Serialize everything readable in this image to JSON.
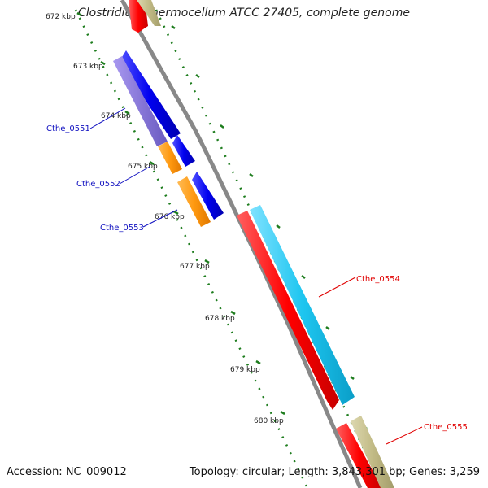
{
  "title": "Clostridium thermocellum ATCC 27405, complete genome",
  "footer": {
    "accession": "Accession: NC_009012",
    "topology": "Topology: circular; Length: 3,843,301 bp; Genes: 3,259"
  },
  "colors": {
    "backbone": "#888888",
    "ticks": "#1e7d1e",
    "label_blue": "#1010c0",
    "label_red": "#e00000",
    "cds_forward": "#ff0000",
    "cds_reverse": "#0000ee",
    "gene_other_reverse": "#8878d8",
    "gene_misc": "#ff9910",
    "gene_cyan": "#1ec6f0",
    "gene_khaki": "#c2bb86"
  },
  "kbp_labels": [
    "672 kbp",
    "673 kbp",
    "674 kbp",
    "675 kbp",
    "676 kbp",
    "677 kbp",
    "678 kbp",
    "679 kbp",
    "680 kbp"
  ],
  "gene_labels": [
    {
      "name": "Cthe_0551",
      "side": "left"
    },
    {
      "name": "Cthe_0552",
      "side": "left"
    },
    {
      "name": "Cthe_0553",
      "side": "left"
    },
    {
      "name": "Cthe_0554",
      "side": "right"
    },
    {
      "name": "Cthe_0555",
      "side": "right"
    }
  ]
}
